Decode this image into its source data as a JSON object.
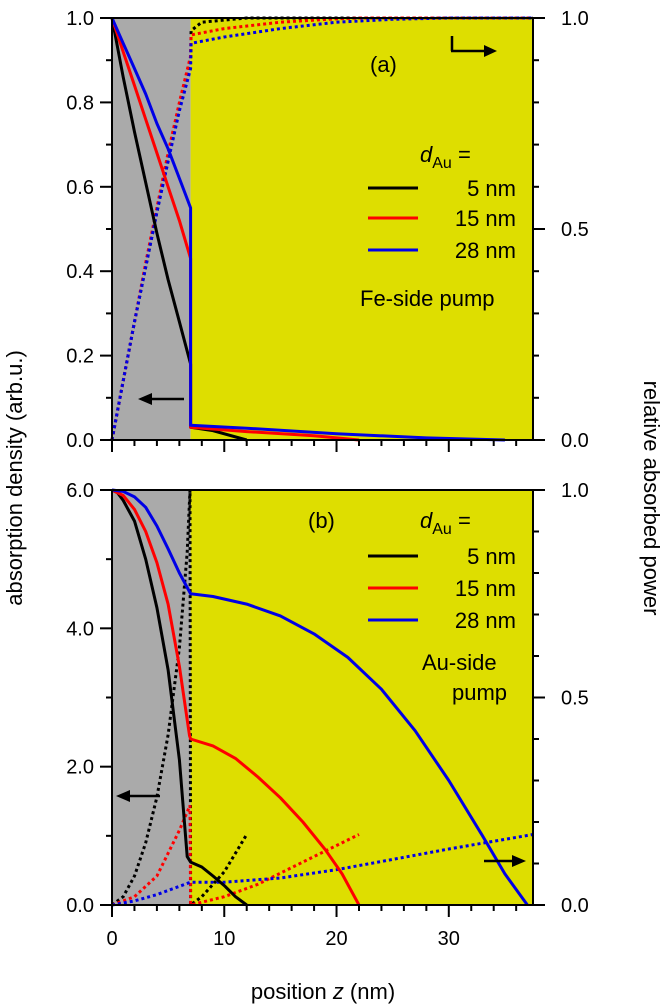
{
  "figure": {
    "xlabel": {
      "pre": "position ",
      "var": "z",
      "post": " (nm)"
    },
    "ylabel_left": "absorption density (arb.u.)",
    "ylabel_right": "relative absorbed power"
  },
  "colors": {
    "black": "#000000",
    "red": "#ff0000",
    "blue": "#0000e6",
    "fe_layer": "#aaaaaa",
    "au_layer": "#dede00"
  },
  "chart_data": [
    {
      "type": "line",
      "panel_label": "(a)",
      "legend_title": {
        "var": "d",
        "sub": "Au",
        "eq": " ="
      },
      "condition": [
        "Fe-side pump"
      ],
      "xlim": [
        0,
        37.5
      ],
      "x_ticks": [
        "0",
        "10",
        "20",
        "30"
      ],
      "ylim_left": [
        0,
        1.0
      ],
      "y_ticks_left": [
        "0.0",
        "0.2",
        "0.4",
        "0.6",
        "0.8",
        "1.0"
      ],
      "ylim_right": [
        0,
        1.0
      ],
      "y_ticks_right": [
        "0.0",
        "0.5",
        "1.0"
      ],
      "fe_region": [
        0,
        7
      ],
      "au_region": [
        7,
        37.5
      ],
      "series": [
        {
          "name": "5 nm",
          "color": "black",
          "au_thickness": 5,
          "density": [
            [
              0,
              1.0
            ],
            [
              1,
              0.86
            ],
            [
              2,
              0.73
            ],
            [
              3,
              0.61
            ],
            [
              4,
              0.49
            ],
            [
              5,
              0.38
            ],
            [
              6,
              0.28
            ],
            [
              7,
              0.18
            ],
            [
              7,
              0.03
            ],
            [
              9,
              0.022
            ],
            [
              12,
              0.0
            ]
          ],
          "power": [
            [
              0,
              0.0
            ],
            [
              1,
              0.14
            ],
            [
              2,
              0.28
            ],
            [
              3,
              0.41
            ],
            [
              4,
              0.54
            ],
            [
              5,
              0.67
            ],
            [
              6,
              0.79
            ],
            [
              7,
              0.9
            ],
            [
              7.05,
              0.97
            ],
            [
              8,
              0.99
            ],
            [
              12,
              1.0
            ],
            [
              20,
              1.0
            ],
            [
              37.5,
              1.0
            ]
          ]
        },
        {
          "name": "15 nm",
          "color": "red",
          "au_thickness": 15,
          "density": [
            [
              0,
              1.0
            ],
            [
              1,
              0.92
            ],
            [
              2,
              0.84
            ],
            [
              3,
              0.76
            ],
            [
              4,
              0.68
            ],
            [
              5,
              0.6
            ],
            [
              6,
              0.52
            ],
            [
              7,
              0.43
            ],
            [
              7,
              0.03
            ],
            [
              12,
              0.02
            ],
            [
              18,
              0.01
            ],
            [
              22,
              0.0
            ]
          ],
          "power": [
            [
              0,
              0.0
            ],
            [
              1,
              0.14
            ],
            [
              2,
              0.28
            ],
            [
              3,
              0.42
            ],
            [
              4,
              0.55
            ],
            [
              5,
              0.68
            ],
            [
              6,
              0.8
            ],
            [
              7,
              0.91
            ],
            [
              7.05,
              0.96
            ],
            [
              10,
              0.975
            ],
            [
              15,
              0.99
            ],
            [
              20,
              0.998
            ],
            [
              22,
              1.0
            ],
            [
              37.5,
              1.0
            ]
          ]
        },
        {
          "name": "28 nm",
          "color": "blue",
          "au_thickness": 28,
          "density": [
            [
              0,
              1.0
            ],
            [
              1,
              0.94
            ],
            [
              2,
              0.88
            ],
            [
              3,
              0.82
            ],
            [
              4,
              0.75
            ],
            [
              5,
              0.69
            ],
            [
              6,
              0.62
            ],
            [
              7,
              0.55
            ],
            [
              7,
              0.035
            ],
            [
              12,
              0.028
            ],
            [
              20,
              0.015
            ],
            [
              28,
              0.005
            ],
            [
              35,
              0.0
            ]
          ],
          "power": [
            [
              0,
              0.0
            ],
            [
              1,
              0.14
            ],
            [
              2,
              0.28
            ],
            [
              3,
              0.41
            ],
            [
              4,
              0.54
            ],
            [
              5,
              0.66
            ],
            [
              6,
              0.78
            ],
            [
              7,
              0.88
            ],
            [
              7.05,
              0.94
            ],
            [
              10,
              0.955
            ],
            [
              15,
              0.975
            ],
            [
              20,
              0.99
            ],
            [
              25,
              0.997
            ],
            [
              30,
              1.0
            ],
            [
              37.5,
              1.0
            ]
          ]
        }
      ]
    },
    {
      "type": "line",
      "panel_label": "(b)",
      "legend_title": {
        "var": "d",
        "sub": "Au",
        "eq": " ="
      },
      "condition": [
        "Au-side",
        "pump"
      ],
      "xlim": [
        0,
        37.5
      ],
      "x_ticks": [
        "0",
        "10",
        "20",
        "30"
      ],
      "ylim_left": [
        0,
        6.0
      ],
      "y_ticks_left": [
        "0.0",
        "2.0",
        "4.0",
        "6.0"
      ],
      "ylim_right": [
        0,
        1.0
      ],
      "y_ticks_right": [
        "0.0",
        "0.5",
        "1.0"
      ],
      "fe_region": [
        0,
        7
      ],
      "au_region": [
        7,
        37.5
      ],
      "series": [
        {
          "name": "5 nm",
          "color": "black",
          "au_thickness": 5,
          "density": [
            [
              0,
              6.0
            ],
            [
              0.5,
              5.96
            ],
            [
              1,
              5.85
            ],
            [
              2,
              5.55
            ],
            [
              3,
              5.0
            ],
            [
              4,
              4.3
            ],
            [
              5,
              3.4
            ],
            [
              6,
              2.1
            ],
            [
              6.7,
              0.7
            ],
            [
              7,
              0.62
            ],
            [
              8,
              0.55
            ],
            [
              9,
              0.42
            ],
            [
              10,
              0.28
            ],
            [
              11,
              0.12
            ],
            [
              12,
              0.0
            ]
          ],
          "power": [
            [
              0,
              0.0
            ],
            [
              1,
              0.02
            ],
            [
              2,
              0.07
            ],
            [
              3,
              0.15
            ],
            [
              4,
              0.26
            ],
            [
              5,
              0.41
            ],
            [
              6,
              0.62
            ],
            [
              6.7,
              0.85
            ],
            [
              6.95,
              1.0
            ],
            [
              7,
              0.0
            ],
            [
              8,
              0.02
            ],
            [
              10,
              0.08
            ],
            [
              12,
              0.17
            ]
          ]
        },
        {
          "name": "15 nm",
          "color": "red",
          "au_thickness": 15,
          "density": [
            [
              0,
              6.0
            ],
            [
              1,
              5.92
            ],
            [
              2,
              5.72
            ],
            [
              3,
              5.4
            ],
            [
              4,
              4.95
            ],
            [
              5,
              4.35
            ],
            [
              6,
              3.45
            ],
            [
              6.9,
              2.45
            ],
            [
              7,
              2.4
            ],
            [
              9,
              2.3
            ],
            [
              11,
              2.12
            ],
            [
              13,
              1.85
            ],
            [
              15,
              1.55
            ],
            [
              17,
              1.2
            ],
            [
              19,
              0.8
            ],
            [
              20.5,
              0.45
            ],
            [
              22,
              0.0
            ]
          ],
          "power": [
            [
              0,
              0.0
            ],
            [
              2,
              0.02
            ],
            [
              4,
              0.07
            ],
            [
              6,
              0.18
            ],
            [
              6.95,
              0.24
            ],
            [
              7,
              0.0
            ],
            [
              10,
              0.02
            ],
            [
              13,
              0.05
            ],
            [
              16,
              0.09
            ],
            [
              19,
              0.13
            ],
            [
              22,
              0.17
            ]
          ]
        },
        {
          "name": "28 nm",
          "color": "blue",
          "au_thickness": 28,
          "density": [
            [
              0,
              6.0
            ],
            [
              1,
              5.98
            ],
            [
              2,
              5.9
            ],
            [
              3,
              5.75
            ],
            [
              4,
              5.48
            ],
            [
              5,
              5.15
            ],
            [
              6,
              4.8
            ],
            [
              7,
              4.5
            ],
            [
              9,
              4.46
            ],
            [
              12,
              4.35
            ],
            [
              15,
              4.18
            ],
            [
              18,
              3.92
            ],
            [
              21,
              3.58
            ],
            [
              24,
              3.12
            ],
            [
              27,
              2.52
            ],
            [
              30,
              1.8
            ],
            [
              33,
              1.0
            ],
            [
              35,
              0.45
            ],
            [
              37,
              0.0
            ]
          ],
          "power": [
            [
              0,
              0.0
            ],
            [
              2,
              0.01
            ],
            [
              4,
              0.025
            ],
            [
              6,
              0.045
            ],
            [
              7,
              0.055
            ],
            [
              10,
              0.055
            ],
            [
              15,
              0.065
            ],
            [
              20,
              0.085
            ],
            [
              25,
              0.11
            ],
            [
              30,
              0.135
            ],
            [
              37.5,
              0.17
            ]
          ]
        }
      ]
    }
  ]
}
